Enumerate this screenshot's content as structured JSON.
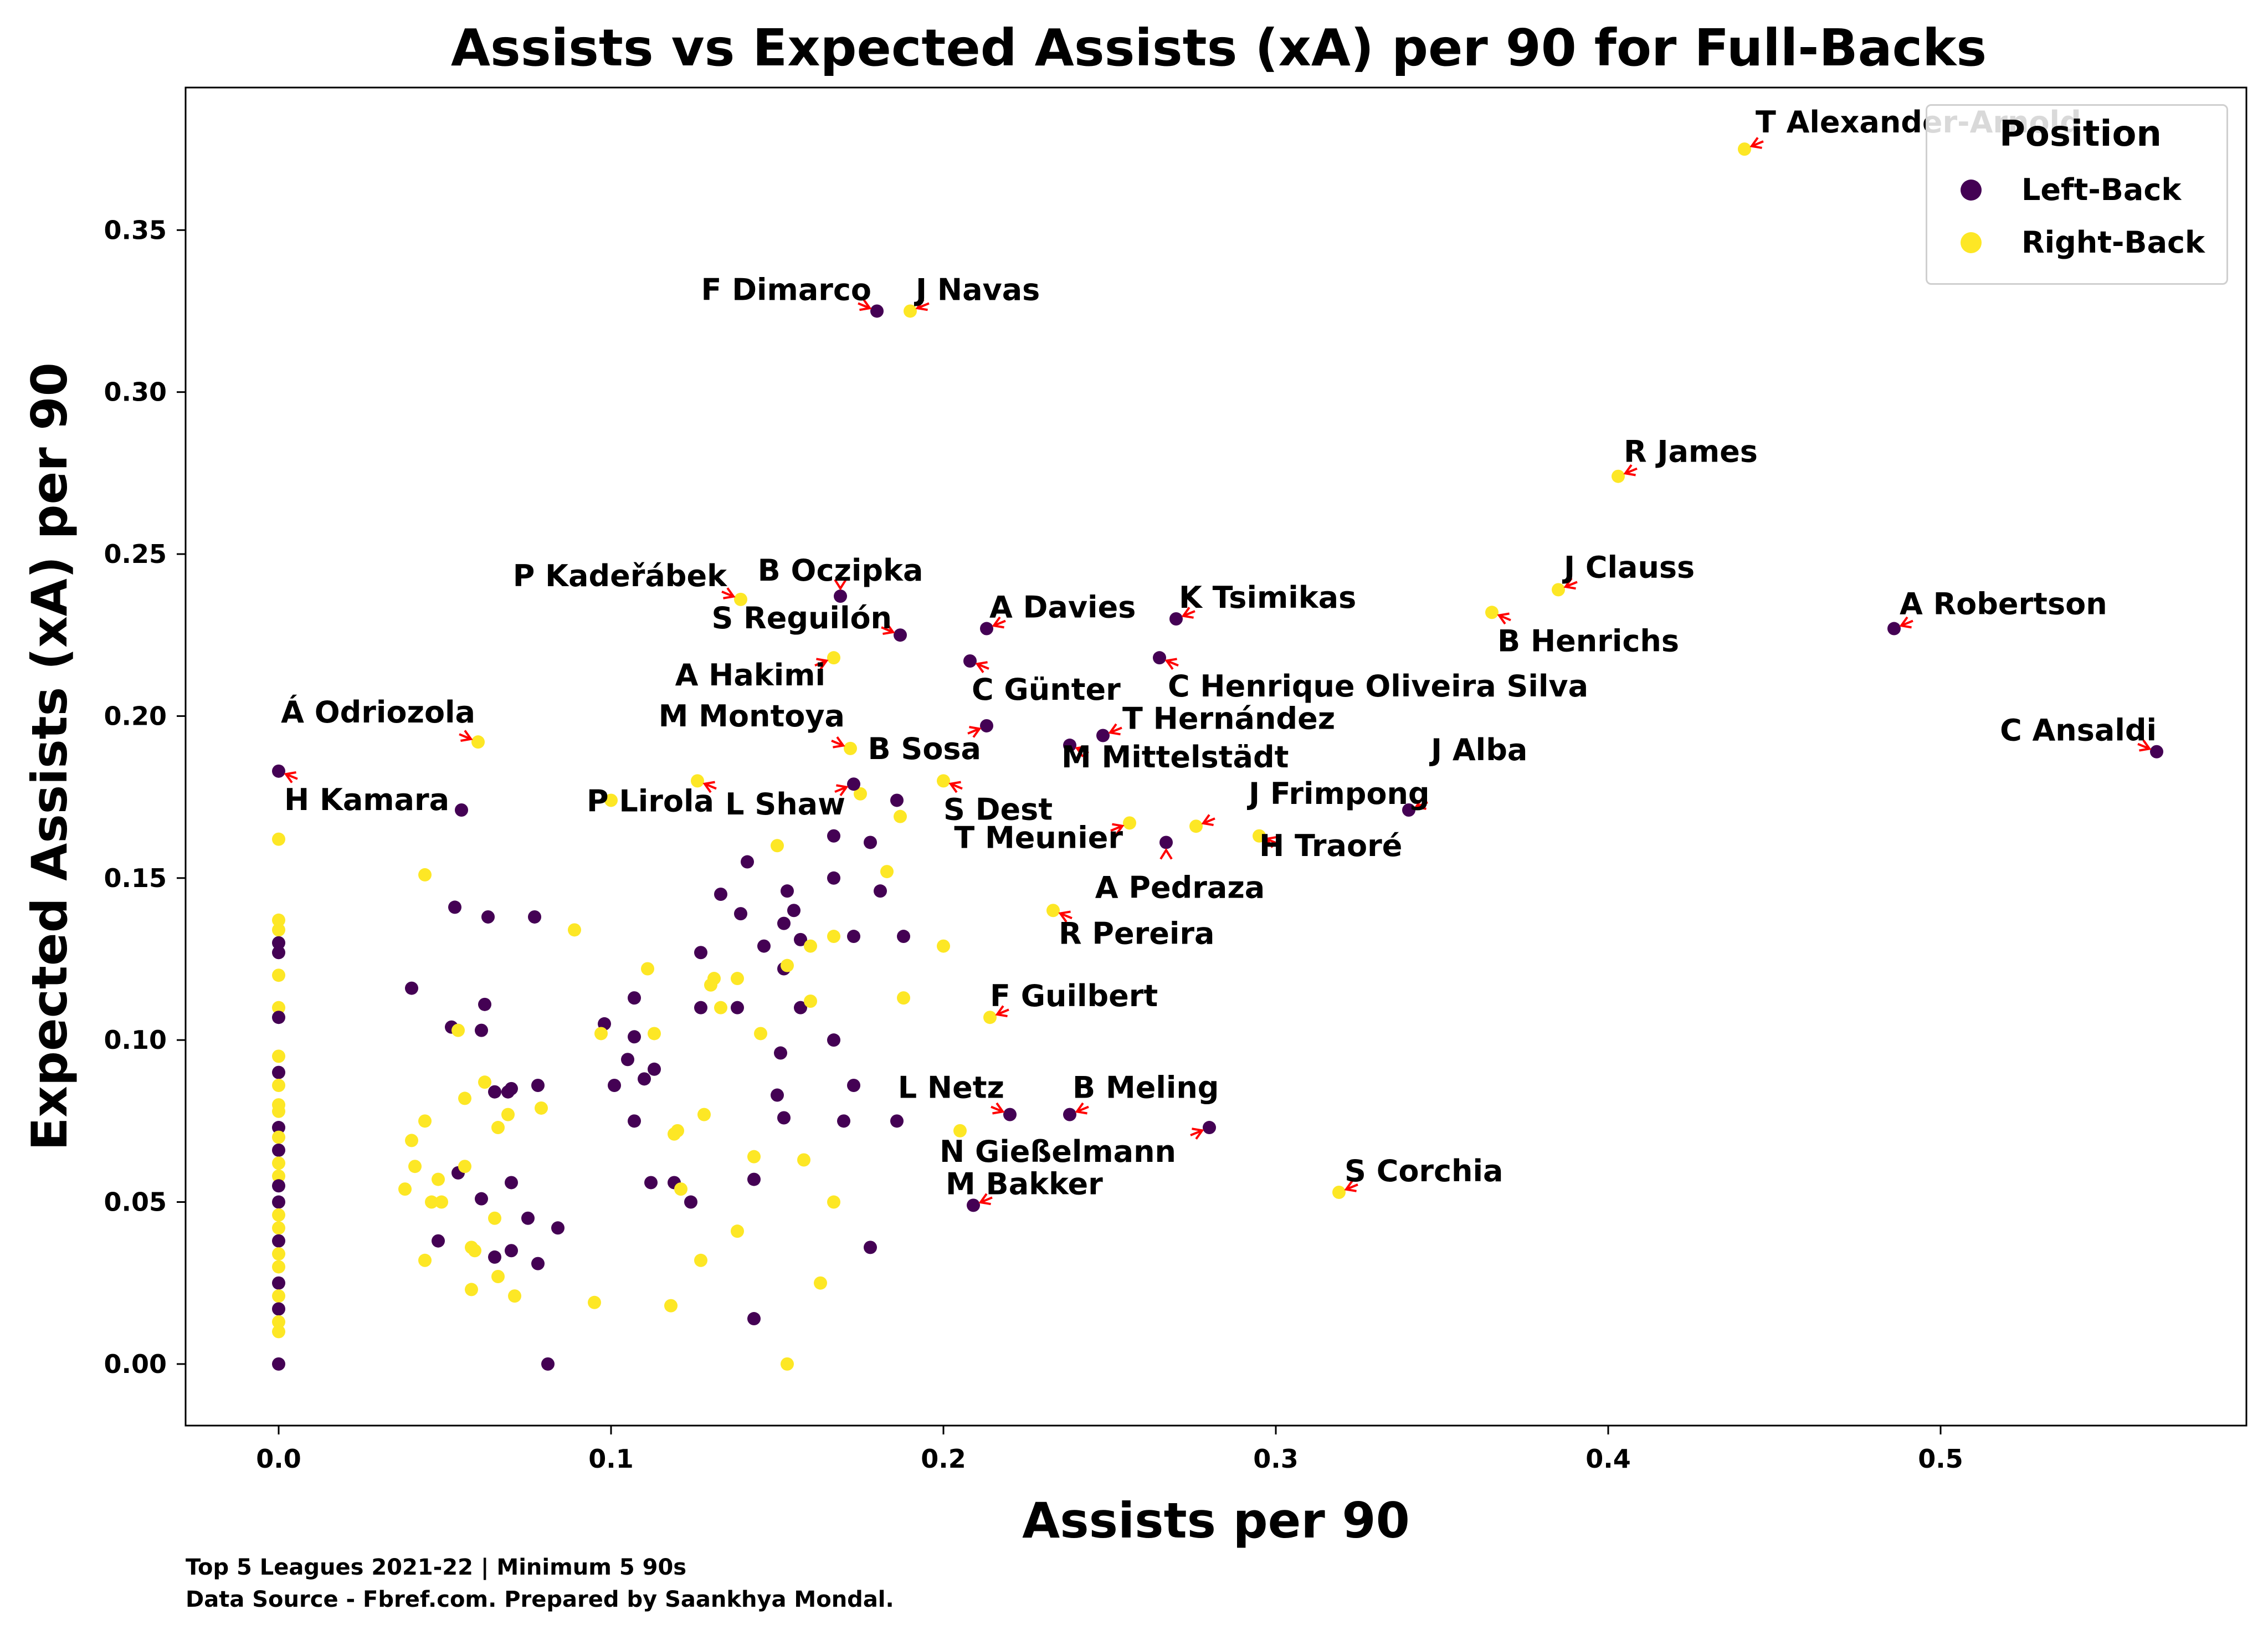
{
  "chart_data": {
    "type": "scatter",
    "title": "Assists vs Expected Assists (xA) per 90 for Full-Backs",
    "xlabel": "Assists per 90",
    "ylabel": "Expected Assists (xA) per 90",
    "xlim": [
      -0.028,
      0.592
    ],
    "ylim": [
      -0.019,
      0.394
    ],
    "xticks": [
      0.0,
      0.1,
      0.2,
      0.3,
      0.4,
      0.5
    ],
    "xtick_labels": [
      "0.0",
      "0.1",
      "0.2",
      "0.3",
      "0.4",
      "0.5"
    ],
    "yticks": [
      0.0,
      0.05,
      0.1,
      0.15,
      0.2,
      0.25,
      0.3,
      0.35
    ],
    "ytick_labels": [
      "0.00",
      "0.05",
      "0.10",
      "0.15",
      "0.20",
      "0.25",
      "0.30",
      "0.35"
    ],
    "grid": false,
    "legend": {
      "title": "Position",
      "placement": "top-right",
      "entries": [
        "Left-Back",
        "Right-Back"
      ]
    },
    "colors": {
      "Left-Back": "#440154",
      "Right-Back": "#fde725",
      "annotation_arrow": "#ff0000"
    },
    "labeled_points": [
      {
        "name": "T Alexander-Arnold",
        "x": 0.441,
        "y": 0.375,
        "position": "Right-Back"
      },
      {
        "name": "F Dimarco",
        "x": 0.18,
        "y": 0.325,
        "position": "Left-Back"
      },
      {
        "name": "J Navas",
        "x": 0.19,
        "y": 0.325,
        "position": "Right-Back"
      },
      {
        "name": "R James",
        "x": 0.403,
        "y": 0.274,
        "position": "Right-Back"
      },
      {
        "name": "J Clauss",
        "x": 0.385,
        "y": 0.239,
        "position": "Right-Back"
      },
      {
        "name": "B Henrichs",
        "x": 0.365,
        "y": 0.232,
        "position": "Right-Back"
      },
      {
        "name": "A Robertson",
        "x": 0.486,
        "y": 0.227,
        "position": "Left-Back"
      },
      {
        "name": "P Kadeřábek",
        "x": 0.139,
        "y": 0.236,
        "position": "Right-Back"
      },
      {
        "name": "B Oczipka",
        "x": 0.169,
        "y": 0.237,
        "position": "Left-Back"
      },
      {
        "name": "S Reguilón",
        "x": 0.187,
        "y": 0.225,
        "position": "Left-Back"
      },
      {
        "name": "A Davies",
        "x": 0.213,
        "y": 0.227,
        "position": "Left-Back"
      },
      {
        "name": "K Tsimikas",
        "x": 0.27,
        "y": 0.23,
        "position": "Left-Back"
      },
      {
        "name": "A Hakimi",
        "x": 0.167,
        "y": 0.218,
        "position": "Right-Back"
      },
      {
        "name": "C Günter",
        "x": 0.208,
        "y": 0.217,
        "position": "Left-Back"
      },
      {
        "name": "C Henrique Oliveira Silva",
        "x": 0.265,
        "y": 0.218,
        "position": "Left-Back"
      },
      {
        "name": "Á Odriozola",
        "x": 0.06,
        "y": 0.192,
        "position": "Right-Back"
      },
      {
        "name": "H Kamara",
        "x": 0.0,
        "y": 0.183,
        "position": "Left-Back"
      },
      {
        "name": "M Montoya",
        "x": 0.172,
        "y": 0.19,
        "position": "Right-Back"
      },
      {
        "name": "B Sosa",
        "x": 0.213,
        "y": 0.197,
        "position": "Left-Back"
      },
      {
        "name": "T Hernández",
        "x": 0.248,
        "y": 0.194,
        "position": "Left-Back"
      },
      {
        "name": "M Mittelstädt",
        "x": 0.238,
        "y": 0.191,
        "position": "Left-Back"
      },
      {
        "name": "C Ansaldi",
        "x": 0.565,
        "y": 0.189,
        "position": "Left-Back"
      },
      {
        "name": "J Alba",
        "x": 0.34,
        "y": 0.171,
        "position": "Left-Back"
      },
      {
        "name": "P Lirola",
        "x": 0.126,
        "y": 0.18,
        "position": "Right-Back"
      },
      {
        "name": "L Shaw",
        "x": 0.173,
        "y": 0.179,
        "position": "Left-Back"
      },
      {
        "name": "S Dest",
        "x": 0.2,
        "y": 0.18,
        "position": "Right-Back"
      },
      {
        "name": "J Frimpong",
        "x": 0.276,
        "y": 0.166,
        "position": "Right-Back"
      },
      {
        "name": "T Meunier",
        "x": 0.256,
        "y": 0.167,
        "position": "Right-Back"
      },
      {
        "name": "H Traoré",
        "x": 0.295,
        "y": 0.163,
        "position": "Right-Back"
      },
      {
        "name": "A Pedraza",
        "x": 0.267,
        "y": 0.161,
        "position": "Left-Back"
      },
      {
        "name": "R Pereira",
        "x": 0.233,
        "y": 0.14,
        "position": "Right-Back"
      },
      {
        "name": "F Guilbert",
        "x": 0.214,
        "y": 0.107,
        "position": "Right-Back"
      },
      {
        "name": "L Netz",
        "x": 0.22,
        "y": 0.077,
        "position": "Left-Back"
      },
      {
        "name": "B Meling",
        "x": 0.238,
        "y": 0.077,
        "position": "Left-Back"
      },
      {
        "name": "N Gießelmann",
        "x": 0.28,
        "y": 0.073,
        "position": "Left-Back"
      },
      {
        "name": "S Corchia",
        "x": 0.319,
        "y": 0.053,
        "position": "Right-Back"
      },
      {
        "name": "M Bakker",
        "x": 0.209,
        "y": 0.049,
        "position": "Left-Back"
      }
    ],
    "other_points": [
      {
        "x": 0.0,
        "y": 0.162,
        "position": "Right-Back"
      },
      {
        "x": 0.0,
        "y": 0.137,
        "position": "Right-Back"
      },
      {
        "x": 0.0,
        "y": 0.134,
        "position": "Right-Back"
      },
      {
        "x": 0.0,
        "y": 0.13,
        "position": "Left-Back"
      },
      {
        "x": 0.0,
        "y": 0.127,
        "position": "Left-Back"
      },
      {
        "x": 0.0,
        "y": 0.12,
        "position": "Right-Back"
      },
      {
        "x": 0.0,
        "y": 0.11,
        "position": "Right-Back"
      },
      {
        "x": 0.0,
        "y": 0.107,
        "position": "Left-Back"
      },
      {
        "x": 0.0,
        "y": 0.095,
        "position": "Right-Back"
      },
      {
        "x": 0.0,
        "y": 0.09,
        "position": "Left-Back"
      },
      {
        "x": 0.0,
        "y": 0.086,
        "position": "Right-Back"
      },
      {
        "x": 0.0,
        "y": 0.08,
        "position": "Right-Back"
      },
      {
        "x": 0.0,
        "y": 0.078,
        "position": "Right-Back"
      },
      {
        "x": 0.0,
        "y": 0.073,
        "position": "Left-Back"
      },
      {
        "x": 0.0,
        "y": 0.07,
        "position": "Right-Back"
      },
      {
        "x": 0.0,
        "y": 0.066,
        "position": "Left-Back"
      },
      {
        "x": 0.0,
        "y": 0.062,
        "position": "Right-Back"
      },
      {
        "x": 0.0,
        "y": 0.058,
        "position": "Right-Back"
      },
      {
        "x": 0.0,
        "y": 0.055,
        "position": "Left-Back"
      },
      {
        "x": 0.0,
        "y": 0.05,
        "position": "Left-Back"
      },
      {
        "x": 0.0,
        "y": 0.046,
        "position": "Right-Back"
      },
      {
        "x": 0.0,
        "y": 0.042,
        "position": "Right-Back"
      },
      {
        "x": 0.0,
        "y": 0.038,
        "position": "Left-Back"
      },
      {
        "x": 0.0,
        "y": 0.034,
        "position": "Right-Back"
      },
      {
        "x": 0.0,
        "y": 0.03,
        "position": "Right-Back"
      },
      {
        "x": 0.0,
        "y": 0.025,
        "position": "Left-Back"
      },
      {
        "x": 0.0,
        "y": 0.021,
        "position": "Right-Back"
      },
      {
        "x": 0.0,
        "y": 0.017,
        "position": "Left-Back"
      },
      {
        "x": 0.0,
        "y": 0.013,
        "position": "Right-Back"
      },
      {
        "x": 0.0,
        "y": 0.01,
        "position": "Right-Back"
      },
      {
        "x": 0.0,
        "y": 0.0,
        "position": "Left-Back"
      },
      {
        "x": 0.055,
        "y": 0.171,
        "position": "Left-Back"
      },
      {
        "x": 0.044,
        "y": 0.151,
        "position": "Right-Back"
      },
      {
        "x": 0.053,
        "y": 0.141,
        "position": "Left-Back"
      },
      {
        "x": 0.063,
        "y": 0.138,
        "position": "Left-Back"
      },
      {
        "x": 0.077,
        "y": 0.138,
        "position": "Left-Back"
      },
      {
        "x": 0.089,
        "y": 0.134,
        "position": "Right-Back"
      },
      {
        "x": 0.04,
        "y": 0.116,
        "position": "Left-Back"
      },
      {
        "x": 0.062,
        "y": 0.111,
        "position": "Left-Back"
      },
      {
        "x": 0.052,
        "y": 0.104,
        "position": "Left-Back"
      },
      {
        "x": 0.061,
        "y": 0.103,
        "position": "Left-Back"
      },
      {
        "x": 0.054,
        "y": 0.103,
        "position": "Right-Back"
      },
      {
        "x": 0.062,
        "y": 0.087,
        "position": "Right-Back"
      },
      {
        "x": 0.065,
        "y": 0.084,
        "position": "Left-Back"
      },
      {
        "x": 0.069,
        "y": 0.084,
        "position": "Left-Back"
      },
      {
        "x": 0.07,
        "y": 0.085,
        "position": "Left-Back"
      },
      {
        "x": 0.078,
        "y": 0.086,
        "position": "Left-Back"
      },
      {
        "x": 0.056,
        "y": 0.082,
        "position": "Right-Back"
      },
      {
        "x": 0.069,
        "y": 0.077,
        "position": "Right-Back"
      },
      {
        "x": 0.079,
        "y": 0.079,
        "position": "Right-Back"
      },
      {
        "x": 0.066,
        "y": 0.073,
        "position": "Right-Back"
      },
      {
        "x": 0.044,
        "y": 0.075,
        "position": "Right-Back"
      },
      {
        "x": 0.04,
        "y": 0.069,
        "position": "Right-Back"
      },
      {
        "x": 0.041,
        "y": 0.061,
        "position": "Right-Back"
      },
      {
        "x": 0.054,
        "y": 0.059,
        "position": "Left-Back"
      },
      {
        "x": 0.048,
        "y": 0.057,
        "position": "Right-Back"
      },
      {
        "x": 0.056,
        "y": 0.061,
        "position": "Right-Back"
      },
      {
        "x": 0.061,
        "y": 0.051,
        "position": "Left-Back"
      },
      {
        "x": 0.038,
        "y": 0.054,
        "position": "Right-Back"
      },
      {
        "x": 0.046,
        "y": 0.05,
        "position": "Right-Back"
      },
      {
        "x": 0.049,
        "y": 0.05,
        "position": "Right-Back"
      },
      {
        "x": 0.07,
        "y": 0.056,
        "position": "Left-Back"
      },
      {
        "x": 0.065,
        "y": 0.045,
        "position": "Right-Back"
      },
      {
        "x": 0.075,
        "y": 0.045,
        "position": "Left-Back"
      },
      {
        "x": 0.084,
        "y": 0.042,
        "position": "Left-Back"
      },
      {
        "x": 0.048,
        "y": 0.038,
        "position": "Left-Back"
      },
      {
        "x": 0.058,
        "y": 0.036,
        "position": "Right-Back"
      },
      {
        "x": 0.059,
        "y": 0.035,
        "position": "Right-Back"
      },
      {
        "x": 0.044,
        "y": 0.032,
        "position": "Right-Back"
      },
      {
        "x": 0.065,
        "y": 0.033,
        "position": "Left-Back"
      },
      {
        "x": 0.07,
        "y": 0.035,
        "position": "Left-Back"
      },
      {
        "x": 0.078,
        "y": 0.031,
        "position": "Left-Back"
      },
      {
        "x": 0.066,
        "y": 0.027,
        "position": "Right-Back"
      },
      {
        "x": 0.058,
        "y": 0.023,
        "position": "Right-Back"
      },
      {
        "x": 0.071,
        "y": 0.021,
        "position": "Right-Back"
      },
      {
        "x": 0.081,
        "y": 0.0,
        "position": "Left-Back"
      },
      {
        "x": 0.1,
        "y": 0.174,
        "position": "Right-Back"
      },
      {
        "x": 0.098,
        "y": 0.105,
        "position": "Left-Back"
      },
      {
        "x": 0.097,
        "y": 0.102,
        "position": "Right-Back"
      },
      {
        "x": 0.107,
        "y": 0.101,
        "position": "Left-Back"
      },
      {
        "x": 0.113,
        "y": 0.102,
        "position": "Right-Back"
      },
      {
        "x": 0.107,
        "y": 0.113,
        "position": "Left-Back"
      },
      {
        "x": 0.111,
        "y": 0.122,
        "position": "Right-Back"
      },
      {
        "x": 0.105,
        "y": 0.094,
        "position": "Left-Back"
      },
      {
        "x": 0.113,
        "y": 0.091,
        "position": "Left-Back"
      },
      {
        "x": 0.101,
        "y": 0.086,
        "position": "Left-Back"
      },
      {
        "x": 0.11,
        "y": 0.088,
        "position": "Left-Back"
      },
      {
        "x": 0.107,
        "y": 0.075,
        "position": "Left-Back"
      },
      {
        "x": 0.119,
        "y": 0.071,
        "position": "Right-Back"
      },
      {
        "x": 0.12,
        "y": 0.072,
        "position": "Right-Back"
      },
      {
        "x": 0.112,
        "y": 0.056,
        "position": "Left-Back"
      },
      {
        "x": 0.119,
        "y": 0.056,
        "position": "Left-Back"
      },
      {
        "x": 0.121,
        "y": 0.054,
        "position": "Right-Back"
      },
      {
        "x": 0.124,
        "y": 0.05,
        "position": "Left-Back"
      },
      {
        "x": 0.095,
        "y": 0.019,
        "position": "Right-Back"
      },
      {
        "x": 0.118,
        "y": 0.018,
        "position": "Right-Back"
      },
      {
        "x": 0.127,
        "y": 0.032,
        "position": "Right-Back"
      },
      {
        "x": 0.127,
        "y": 0.127,
        "position": "Left-Back"
      },
      {
        "x": 0.133,
        "y": 0.145,
        "position": "Left-Back"
      },
      {
        "x": 0.13,
        "y": 0.117,
        "position": "Right-Back"
      },
      {
        "x": 0.131,
        "y": 0.119,
        "position": "Right-Back"
      },
      {
        "x": 0.138,
        "y": 0.119,
        "position": "Right-Back"
      },
      {
        "x": 0.127,
        "y": 0.11,
        "position": "Left-Back"
      },
      {
        "x": 0.133,
        "y": 0.11,
        "position": "Right-Back"
      },
      {
        "x": 0.138,
        "y": 0.11,
        "position": "Left-Back"
      },
      {
        "x": 0.128,
        "y": 0.077,
        "position": "Right-Back"
      },
      {
        "x": 0.139,
        "y": 0.139,
        "position": "Left-Back"
      },
      {
        "x": 0.141,
        "y": 0.155,
        "position": "Left-Back"
      },
      {
        "x": 0.146,
        "y": 0.129,
        "position": "Left-Back"
      },
      {
        "x": 0.145,
        "y": 0.102,
        "position": "Right-Back"
      },
      {
        "x": 0.15,
        "y": 0.16,
        "position": "Right-Back"
      },
      {
        "x": 0.143,
        "y": 0.064,
        "position": "Right-Back"
      },
      {
        "x": 0.143,
        "y": 0.057,
        "position": "Left-Back"
      },
      {
        "x": 0.138,
        "y": 0.041,
        "position": "Right-Back"
      },
      {
        "x": 0.143,
        "y": 0.014,
        "position": "Left-Back"
      },
      {
        "x": 0.15,
        "y": 0.083,
        "position": "Left-Back"
      },
      {
        "x": 0.152,
        "y": 0.076,
        "position": "Left-Back"
      },
      {
        "x": 0.151,
        "y": 0.096,
        "position": "Left-Back"
      },
      {
        "x": 0.152,
        "y": 0.136,
        "position": "Left-Back"
      },
      {
        "x": 0.153,
        "y": 0.146,
        "position": "Left-Back"
      },
      {
        "x": 0.155,
        "y": 0.14,
        "position": "Left-Back"
      },
      {
        "x": 0.157,
        "y": 0.131,
        "position": "Left-Back"
      },
      {
        "x": 0.152,
        "y": 0.122,
        "position": "Left-Back"
      },
      {
        "x": 0.153,
        "y": 0.123,
        "position": "Right-Back"
      },
      {
        "x": 0.157,
        "y": 0.11,
        "position": "Left-Back"
      },
      {
        "x": 0.153,
        "y": 0.0,
        "position": "Right-Back"
      },
      {
        "x": 0.158,
        "y": 0.063,
        "position": "Right-Back"
      },
      {
        "x": 0.16,
        "y": 0.129,
        "position": "Right-Back"
      },
      {
        "x": 0.16,
        "y": 0.112,
        "position": "Right-Back"
      },
      {
        "x": 0.163,
        "y": 0.025,
        "position": "Right-Back"
      },
      {
        "x": 0.167,
        "y": 0.163,
        "position": "Left-Back"
      },
      {
        "x": 0.167,
        "y": 0.15,
        "position": "Left-Back"
      },
      {
        "x": 0.167,
        "y": 0.132,
        "position": "Right-Back"
      },
      {
        "x": 0.167,
        "y": 0.1,
        "position": "Left-Back"
      },
      {
        "x": 0.167,
        "y": 0.05,
        "position": "Right-Back"
      },
      {
        "x": 0.173,
        "y": 0.132,
        "position": "Left-Back"
      },
      {
        "x": 0.173,
        "y": 0.086,
        "position": "Left-Back"
      },
      {
        "x": 0.17,
        "y": 0.075,
        "position": "Left-Back"
      },
      {
        "x": 0.175,
        "y": 0.176,
        "position": "Right-Back"
      },
      {
        "x": 0.178,
        "y": 0.161,
        "position": "Left-Back"
      },
      {
        "x": 0.178,
        "y": 0.036,
        "position": "Left-Back"
      },
      {
        "x": 0.181,
        "y": 0.146,
        "position": "Left-Back"
      },
      {
        "x": 0.183,
        "y": 0.152,
        "position": "Right-Back"
      },
      {
        "x": 0.186,
        "y": 0.174,
        "position": "Left-Back"
      },
      {
        "x": 0.187,
        "y": 0.169,
        "position": "Right-Back"
      },
      {
        "x": 0.188,
        "y": 0.132,
        "position": "Left-Back"
      },
      {
        "x": 0.188,
        "y": 0.113,
        "position": "Right-Back"
      },
      {
        "x": 0.186,
        "y": 0.075,
        "position": "Left-Back"
      },
      {
        "x": 0.2,
        "y": 0.129,
        "position": "Right-Back"
      },
      {
        "x": 0.205,
        "y": 0.072,
        "position": "Right-Back"
      }
    ],
    "footnote": [
      "Top 5 Leagues 2021-22 | Minimum 5 90s",
      "Data Source - Fbref.com. Prepared by Saankhya Mondal."
    ]
  }
}
